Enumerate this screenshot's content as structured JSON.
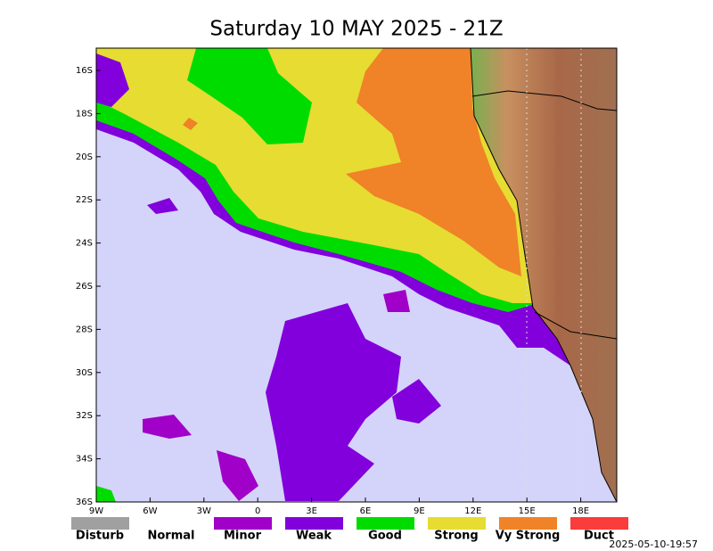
{
  "title": "Saturday 10 MAY 2025 - 21Z",
  "lat_labels": [
    "16S",
    "18S",
    "20S",
    "22S",
    "24S",
    "26S",
    "28S",
    "30S",
    "32S",
    "34S",
    "36S"
  ],
  "lon_labels": [
    "9W",
    "6W",
    "3W",
    "0",
    "3E",
    "6E",
    "9E",
    "12E",
    "15E",
    "18E"
  ],
  "legend": [
    {
      "label": "Disturb",
      "color": "#a0a0a0"
    },
    {
      "label": "Normal",
      "color": "#ffffff"
    },
    {
      "label": "Minor",
      "color": "#a000c8"
    },
    {
      "label": "Weak",
      "color": "#8200dc"
    },
    {
      "label": "Good",
      "color": "#00dc00"
    },
    {
      "label": "Strong",
      "color": "#e6dc32"
    },
    {
      "label": "Vy Strong",
      "color": "#f08228"
    },
    {
      "label": "Duct",
      "color": "#fa3c3c"
    }
  ],
  "timestamp": "2025-05-10-19:57"
}
